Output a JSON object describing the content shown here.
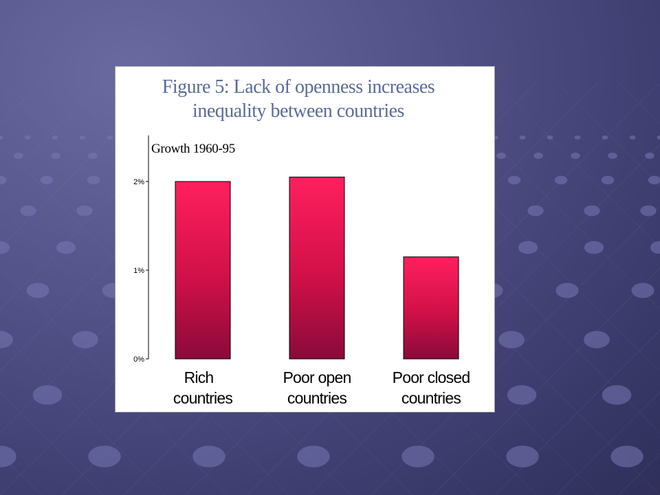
{
  "colors": {
    "bar_top": "#ff1f5e",
    "bar_bottom": "#8a0a3a",
    "title": "#5a6a9a",
    "background": "#55558c"
  },
  "chart_data": {
    "type": "bar",
    "title_lines": [
      "Figure 5: Lack of openness increases",
      "inequality between countries"
    ],
    "ylabel": "Growth 1960-95",
    "xlabel": "",
    "categories": [
      [
        "Rich",
        "countries"
      ],
      [
        "Poor open",
        "countries"
      ],
      [
        "Poor closed",
        "countries"
      ]
    ],
    "values": [
      2.0,
      2.05,
      1.15
    ],
    "ylim": [
      0,
      2.5
    ],
    "yticks": [
      0,
      1,
      2
    ],
    "ytick_labels": [
      "0%",
      "1%",
      "2%"
    ],
    "grid": false,
    "legend": "none"
  }
}
